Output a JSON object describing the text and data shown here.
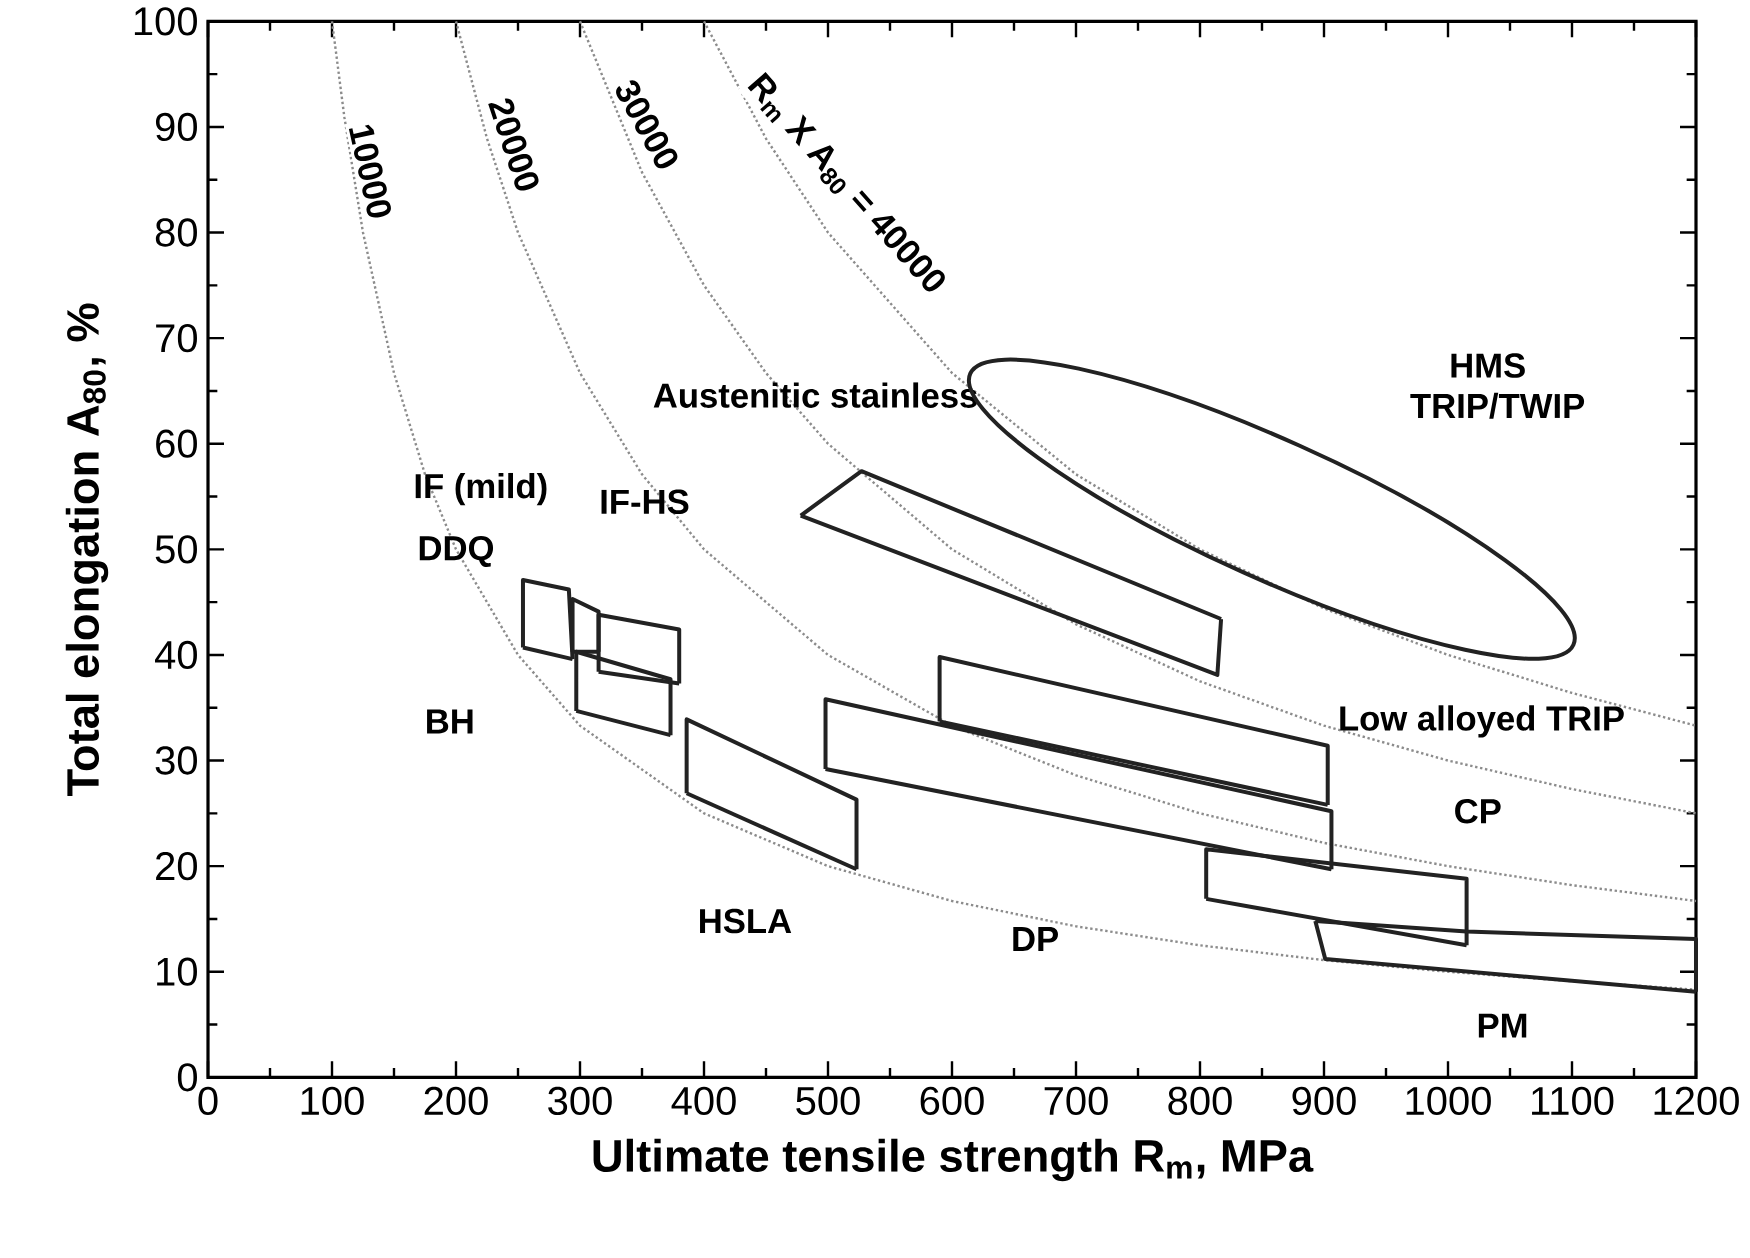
{
  "chart_data": {
    "type": "line",
    "xlabel": "Ultimate tensile strength R$_{m}$, MPa",
    "ylabel": "Total elongation A$_{80}$, %",
    "xlim": [
      0,
      1200
    ],
    "ylim": [
      0,
      100
    ],
    "xticks": [
      0,
      100,
      200,
      300,
      400,
      500,
      600,
      700,
      800,
      900,
      1000,
      1100,
      1200
    ],
    "yticks": [
      0,
      10,
      20,
      30,
      40,
      50,
      60,
      70,
      80,
      90,
      100
    ],
    "grid": false,
    "marker": "none",
    "series": [
      {
        "color": "#8c8c8c",
        "line_style": "dotted",
        "x": [
          100,
          110,
          125,
          150,
          175,
          200,
          250,
          300,
          400,
          500,
          600,
          700,
          800,
          900,
          1000,
          1100,
          1200
        ],
        "values": [
          100,
          90.9,
          80,
          66.7,
          57.1,
          50,
          40,
          33.3,
          25,
          20,
          16.7,
          14.3,
          12.5,
          11.1,
          10,
          9.1,
          8.3
        ]
      },
      {
        "color": "#8c8c8c",
        "line_style": "dotted",
        "x": [
          200,
          225,
          250,
          300,
          350,
          400,
          500,
          600,
          700,
          800,
          900,
          1000,
          1100,
          1200
        ],
        "values": [
          100,
          88.9,
          80,
          66.7,
          57.1,
          50,
          40,
          33.3,
          28.6,
          25,
          22.2,
          20,
          18.2,
          16.7
        ]
      },
      {
        "color": "#8c8c8c",
        "line_style": "dotted",
        "x": [
          300,
          350,
          400,
          450,
          500,
          600,
          700,
          800,
          900,
          1000,
          1100,
          1200
        ],
        "values": [
          100,
          85.7,
          75,
          66.7,
          60,
          50,
          42.9,
          37.5,
          33.3,
          30,
          27.3,
          25
        ]
      },
      {
        "color": "#8c8c8c",
        "line_style": "dotted",
        "x": [
          400,
          450,
          500,
          600,
          700,
          800,
          900,
          1000,
          1100,
          1200
        ],
        "values": [
          100,
          88.9,
          80,
          66.7,
          57.1,
          50,
          44.4,
          40,
          36.4,
          33.3
        ]
      },
      {
        "color": "#222222",
        "line_style": "solid",
        "x": [
          254,
          254,
          291,
          294
        ],
        "values": [
          40.7,
          47.1,
          46.2,
          39.6
        ]
      },
      {
        "color": "#222222",
        "line_style": "solid",
        "x": [
          254,
          294
        ],
        "values": [
          40.7,
          39.6
        ]
      },
      {
        "color": "#222222",
        "line_style": "solid",
        "x": [
          294,
          294,
          315,
          315
        ],
        "values": [
          40.3,
          45.3,
          44.1,
          40.3
        ]
      },
      {
        "color": "#222222",
        "line_style": "solid",
        "x": [
          294,
          315
        ],
        "values": [
          40.3,
          40.3
        ]
      },
      {
        "color": "#222222",
        "line_style": "solid",
        "x": [
          315,
          315,
          380,
          380
        ],
        "values": [
          38.4,
          43.8,
          42.4,
          37.3
        ]
      },
      {
        "color": "#222222",
        "line_style": "solid",
        "x": [
          315,
          380
        ],
        "values": [
          38.4,
          37.3
        ]
      },
      {
        "color": "#222222",
        "line_style": "solid",
        "x": [
          297,
          297,
          373,
          373
        ],
        "values": [
          34.7,
          40.3,
          37.7,
          32.4
        ]
      },
      {
        "color": "#222222",
        "line_style": "solid",
        "x": [
          297,
          373
        ],
        "values": [
          34.7,
          32.4
        ]
      },
      {
        "color": "#222222",
        "line_style": "solid",
        "x": [
          386,
          386,
          523,
          523
        ],
        "values": [
          26.9,
          33.9,
          26.3,
          19.7
        ]
      },
      {
        "color": "#222222",
        "line_style": "solid",
        "x": [
          386,
          523
        ],
        "values": [
          26.9,
          19.7
        ]
      },
      {
        "color": "#222222",
        "line_style": "solid",
        "x": [
          478,
          527,
          817
        ],
        "values": [
          53.2,
          57.4,
          43.4
        ]
      },
      {
        "color": "#222222",
        "line_style": "solid",
        "x": [
          478,
          814,
          817
        ],
        "values": [
          53.2,
          38.1,
          43.4
        ]
      },
      {
        "color": "#222222",
        "line_style": "solid",
        "x": [
          590,
          590,
          903,
          903
        ],
        "values": [
          33.7,
          39.8,
          31.4,
          25.8
        ]
      },
      {
        "color": "#222222",
        "line_style": "solid",
        "x": [
          590,
          903
        ],
        "values": [
          33.7,
          25.8
        ]
      },
      {
        "color": "#222222",
        "line_style": "solid",
        "x": [
          498,
          498,
          906,
          906
        ],
        "values": [
          29.2,
          35.8,
          25.2,
          19.7
        ]
      },
      {
        "color": "#222222",
        "line_style": "solid",
        "x": [
          498,
          906
        ],
        "values": [
          29.2,
          19.7
        ]
      },
      {
        "color": "#222222",
        "line_style": "solid",
        "x": [
          805,
          805,
          1015,
          1015
        ],
        "values": [
          16.9,
          21.6,
          18.8,
          12.5
        ]
      },
      {
        "color": "#222222",
        "line_style": "solid",
        "x": [
          805,
          1015
        ],
        "values": [
          16.9,
          12.5
        ]
      },
      {
        "color": "#222222",
        "line_style": "solid",
        "x": [
          893,
          1015,
          1200,
          1200
        ],
        "values": [
          14.8,
          13.8,
          13.1,
          8.1
        ]
      },
      {
        "color": "#222222",
        "line_style": "solid",
        "x": [
          893,
          901,
          1200
        ],
        "values": [
          14.8,
          11.2,
          8.1
        ]
      }
    ],
    "annotations": [
      "10000",
      "20000",
      "30000",
      "R$_{m}$ X A$_{80}$ = 40000",
      "Austenitic stainless",
      "HMS",
      "TRIP/TWIP",
      "IF (mild)",
      "IF-HS",
      "DDQ",
      "BH",
      "HSLA",
      "DP",
      "Low alloyed TRIP",
      "CP",
      "PM"
    ]
  }
}
